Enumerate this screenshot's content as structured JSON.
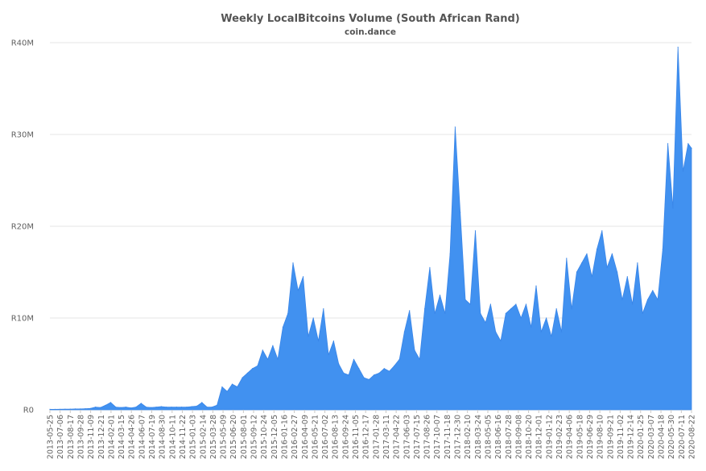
{
  "chart_data": {
    "type": "area",
    "title": "Weekly LocalBitcoins Volume (South African Rand)",
    "subtitle": "coin.dance",
    "xlabel": "",
    "ylabel": "",
    "ylim": [
      0,
      40000000
    ],
    "grid": true,
    "legend": "none",
    "colors": {
      "fill": "#4191f0",
      "stroke": "#3a86e8"
    },
    "y_ticks": [
      {
        "value": 0,
        "label": "R0"
      },
      {
        "value": 10000000,
        "label": "R10M"
      },
      {
        "value": 20000000,
        "label": "R20M"
      },
      {
        "value": 30000000,
        "label": "R30M"
      },
      {
        "value": 40000000,
        "label": "R40M"
      }
    ],
    "x_tick_labels": [
      "2013-05-25",
      "2013-07-06",
      "2013-08-17",
      "2013-09-28",
      "2013-11-09",
      "2013-12-21",
      "2014-02-01",
      "2014-03-15",
      "2014-04-26",
      "2014-06-07",
      "2014-07-19",
      "2014-08-30",
      "2014-10-11",
      "2014-11-22",
      "2015-01-03",
      "2015-02-14",
      "2015-03-28",
      "2015-05-09",
      "2015-06-20",
      "2015-08-01",
      "2015-09-12",
      "2015-10-24",
      "2015-12-05",
      "2016-01-16",
      "2016-02-27",
      "2016-04-09",
      "2016-05-21",
      "2016-07-02",
      "2016-08-13",
      "2016-09-24",
      "2016-11-05",
      "2016-12-17",
      "2017-01-28",
      "2017-03-11",
      "2017-04-22",
      "2017-06-03",
      "2017-07-15",
      "2017-08-26",
      "2017-10-07",
      "2017-11-18",
      "2017-12-30",
      "2018-02-10",
      "2018-03-24",
      "2018-05-05",
      "2018-06-16",
      "2018-07-28",
      "2018-09-08",
      "2018-10-20",
      "2018-12-01",
      "2019-01-12",
      "2019-02-23",
      "2019-04-06",
      "2019-05-18",
      "2019-06-29",
      "2019-08-10",
      "2019-09-21",
      "2019-11-02",
      "2019-12-14",
      "2020-01-25",
      "2020-03-07",
      "2020-04-18",
      "2020-05-30",
      "2020-07-11",
      "2020-08-22"
    ],
    "series": [
      {
        "name": "",
        "unit": "ZAR (millions)",
        "x": [
          "2013-05-25",
          "2013-06-15",
          "2013-07-06",
          "2013-07-27",
          "2013-08-17",
          "2013-09-07",
          "2013-09-28",
          "2013-10-19",
          "2013-11-09",
          "2013-11-30",
          "2013-12-21",
          "2014-01-11",
          "2014-02-01",
          "2014-02-22",
          "2014-03-15",
          "2014-04-05",
          "2014-04-26",
          "2014-05-17",
          "2014-06-07",
          "2014-06-28",
          "2014-07-19",
          "2014-08-09",
          "2014-08-30",
          "2014-09-20",
          "2014-10-11",
          "2014-11-01",
          "2014-11-22",
          "2014-12-13",
          "2015-01-03",
          "2015-01-24",
          "2015-02-14",
          "2015-03-07",
          "2015-03-28",
          "2015-04-18",
          "2015-05-09",
          "2015-05-30",
          "2015-06-20",
          "2015-07-11",
          "2015-08-01",
          "2015-08-22",
          "2015-09-12",
          "2015-10-03",
          "2015-10-24",
          "2015-11-14",
          "2015-12-05",
          "2015-12-26",
          "2016-01-16",
          "2016-02-06",
          "2016-02-27",
          "2016-03-19",
          "2016-04-09",
          "2016-04-30",
          "2016-05-21",
          "2016-06-11",
          "2016-07-02",
          "2016-07-23",
          "2016-08-13",
          "2016-09-03",
          "2016-09-24",
          "2016-10-15",
          "2016-11-05",
          "2016-11-26",
          "2016-12-17",
          "2017-01-07",
          "2017-01-28",
          "2017-02-18",
          "2017-03-11",
          "2017-04-01",
          "2017-04-22",
          "2017-05-13",
          "2017-06-03",
          "2017-06-24",
          "2017-07-15",
          "2017-08-05",
          "2017-08-26",
          "2017-09-16",
          "2017-10-07",
          "2017-10-28",
          "2017-11-18",
          "2017-12-09",
          "2017-12-30",
          "2018-01-20",
          "2018-02-10",
          "2018-03-03",
          "2018-03-24",
          "2018-04-14",
          "2018-05-05",
          "2018-05-26",
          "2018-06-16",
          "2018-07-07",
          "2018-07-28",
          "2018-08-18",
          "2018-09-08",
          "2018-09-29",
          "2018-10-20",
          "2018-11-10",
          "2018-12-01",
          "2018-12-22",
          "2019-01-12",
          "2019-02-02",
          "2019-02-23",
          "2019-03-16",
          "2019-04-06",
          "2019-04-27",
          "2019-05-18",
          "2019-06-08",
          "2019-06-29",
          "2019-07-20",
          "2019-08-10",
          "2019-08-31",
          "2019-09-21",
          "2019-10-12",
          "2019-11-02",
          "2019-11-23",
          "2019-12-14",
          "2020-01-04",
          "2020-01-25",
          "2020-02-15",
          "2020-03-07",
          "2020-03-28",
          "2020-04-18",
          "2020-05-09",
          "2020-05-30",
          "2020-06-20",
          "2020-07-11",
          "2020-08-01",
          "2020-08-22",
          "2020-09-05"
        ],
        "values": [
          0.05,
          0.05,
          0.06,
          0.07,
          0.08,
          0.1,
          0.1,
          0.12,
          0.15,
          0.3,
          0.25,
          0.5,
          0.8,
          0.3,
          0.25,
          0.3,
          0.2,
          0.3,
          0.7,
          0.3,
          0.25,
          0.3,
          0.35,
          0.3,
          0.3,
          0.3,
          0.3,
          0.3,
          0.35,
          0.4,
          0.8,
          0.3,
          0.3,
          0.5,
          2.5,
          2.0,
          2.8,
          2.5,
          3.5,
          4.0,
          4.5,
          4.8,
          6.5,
          5.5,
          7.0,
          5.5,
          9.0,
          10.5,
          16.0,
          13.0,
          14.5,
          8.0,
          10.0,
          7.5,
          11.0,
          6.0,
          7.5,
          5.0,
          4.0,
          3.8,
          5.5,
          4.5,
          3.5,
          3.3,
          3.8,
          4.0,
          4.5,
          4.2,
          4.8,
          5.5,
          8.5,
          10.8,
          6.5,
          5.5,
          11.0,
          15.5,
          10.5,
          12.5,
          10.5,
          17.0,
          30.8,
          21.5,
          12.0,
          11.5,
          19.5,
          10.5,
          9.5,
          11.5,
          8.5,
          7.5,
          10.5,
          11.0,
          11.5,
          10.0,
          11.5,
          9.0,
          13.5,
          8.5,
          10.0,
          8.0,
          11.0,
          8.5,
          16.5,
          11.0,
          15.0,
          16.0,
          17.0,
          14.5,
          17.5,
          19.5,
          15.5,
          17.0,
          15.0,
          12.0,
          14.5,
          11.5,
          16.0,
          10.5,
          12.0,
          13.0,
          12.0,
          17.5,
          29.0,
          22.0,
          39.5,
          26.0,
          29.0,
          28.5
        ]
      }
    ]
  }
}
